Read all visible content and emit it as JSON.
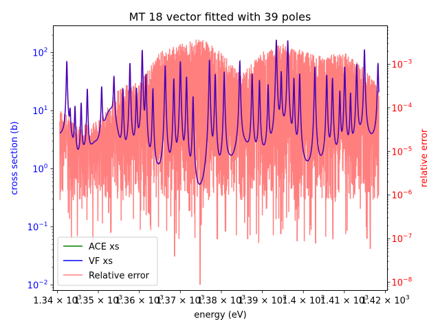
{
  "chart_data": {
    "type": "line",
    "title": "MT 18 vector fitted with 39 poles",
    "xlabel": "energy (eV)",
    "ylabel_left": "cross section (b)",
    "ylabel_right": "relative error",
    "xscale": "linear",
    "yscale_left": "log",
    "yscale_right": "log",
    "xlim": [
      1339.0,
      1420.5
    ],
    "ylim_left": [
      0.008,
      290
    ],
    "ylim_right": [
      6.5e-09,
      0.0076
    ],
    "x_ticks": [
      1340,
      1350,
      1360,
      1370,
      1380,
      1390,
      1400,
      1410,
      1420
    ],
    "x_tick_labels": [
      {
        "mantissa": "1.34",
        "exp": "3"
      },
      {
        "mantissa": "1.35",
        "exp": "3"
      },
      {
        "mantissa": "1.36",
        "exp": "3"
      },
      {
        "mantissa": "1.37",
        "exp": "3"
      },
      {
        "mantissa": "1.38",
        "exp": "3"
      },
      {
        "mantissa": "1.39",
        "exp": "3"
      },
      {
        "mantissa": "1.4",
        "exp": "3"
      },
      {
        "mantissa": "1.41",
        "exp": "3"
      },
      {
        "mantissa": "1.42",
        "exp": "3"
      }
    ],
    "y_left_ticks": [
      {
        "value": 0.01,
        "exp": "−2"
      },
      {
        "value": 0.1,
        "exp": "−1"
      },
      {
        "value": 1,
        "exp": "0"
      },
      {
        "value": 10,
        "exp": "1"
      },
      {
        "value": 100,
        "exp": "2"
      }
    ],
    "y_right_ticks": [
      {
        "value": 1e-08,
        "exp": "−8"
      },
      {
        "value": 1e-07,
        "exp": "−7"
      },
      {
        "value": 1e-06,
        "exp": "−6"
      },
      {
        "value": 1e-05,
        "exp": "−5"
      },
      {
        "value": 0.0001,
        "exp": "−4"
      },
      {
        "value": 0.001,
        "exp": "−3"
      }
    ],
    "legend_position": "lower-left",
    "legend": [
      {
        "name": "ACE xs",
        "color": "#008000"
      },
      {
        "name": "VF xs",
        "color": "#0000ff"
      },
      {
        "name": "Relative error",
        "color": "#ff8080"
      }
    ],
    "cross_section": {
      "x_range": [
        1340.6,
        1418.4
      ],
      "baseline": 3.7,
      "resonances": [
        {
          "x": 1342.3,
          "peak": 68
        },
        {
          "x": 1343.1,
          "peak": 6.2
        },
        {
          "x": 1344.3,
          "peak": 10
        },
        {
          "x": 1345.8,
          "peak": 12
        },
        {
          "x": 1347.3,
          "peak": 22
        },
        {
          "x": 1350.8,
          "peak": 22
        },
        {
          "x": 1353.8,
          "peak": 32
        },
        {
          "x": 1356.0,
          "peak": 22
        },
        {
          "x": 1357.7,
          "peak": 65
        },
        {
          "x": 1359.3,
          "peak": 22
        },
        {
          "x": 1360.7,
          "peak": 110
        },
        {
          "x": 1361.6,
          "peak": 40
        },
        {
          "x": 1363.3,
          "peak": 23
        },
        {
          "x": 1366.3,
          "peak": 60
        },
        {
          "x": 1368.4,
          "peak": 35
        },
        {
          "x": 1370.0,
          "peak": 70
        },
        {
          "x": 1371.5,
          "peak": 38
        },
        {
          "x": 1373.1,
          "peak": 17
        },
        {
          "x": 1377.1,
          "peak": 75
        },
        {
          "x": 1378.5,
          "peak": 42
        },
        {
          "x": 1380.7,
          "peak": 46
        },
        {
          "x": 1384.5,
          "peak": 70
        },
        {
          "x": 1387.5,
          "peak": 42
        },
        {
          "x": 1389.3,
          "peak": 32
        },
        {
          "x": 1391.4,
          "peak": 26
        },
        {
          "x": 1393.4,
          "peak": 165
        },
        {
          "x": 1394.6,
          "peak": 42
        },
        {
          "x": 1396.2,
          "peak": 160
        },
        {
          "x": 1397.7,
          "peak": 34
        },
        {
          "x": 1399.1,
          "peak": 42
        },
        {
          "x": 1402.8,
          "peak": 56
        },
        {
          "x": 1405.7,
          "peak": 40
        },
        {
          "x": 1407.1,
          "peak": 35
        },
        {
          "x": 1408.9,
          "peak": 20
        },
        {
          "x": 1410.1,
          "peak": 56
        },
        {
          "x": 1411.5,
          "peak": 18
        },
        {
          "x": 1413.0,
          "peak": 60
        },
        {
          "x": 1414.9,
          "peak": 110
        },
        {
          "x": 1418.2,
          "peak": 62
        }
      ],
      "valleys": [
        {
          "x": 1342.5,
          "value": 3.9
        },
        {
          "x": 1345.0,
          "value": 1.35
        },
        {
          "x": 1347.0,
          "value": 1.7
        },
        {
          "x": 1349.5,
          "value": 2.7
        },
        {
          "x": 1353.0,
          "value": 10
        },
        {
          "x": 1356.5,
          "value": 1.35
        },
        {
          "x": 1359.5,
          "value": 1.5
        },
        {
          "x": 1362.0,
          "value": 0.55
        },
        {
          "x": 1364.0,
          "value": 0.43
        },
        {
          "x": 1366.0,
          "value": 0.3
        },
        {
          "x": 1367.6,
          "value": 0.4
        },
        {
          "x": 1370.3,
          "value": 0.25
        },
        {
          "x": 1372.3,
          "value": 0.14
        },
        {
          "x": 1374.8,
          "value": 0.013
        },
        {
          "x": 1377.4,
          "value": 0.16
        },
        {
          "x": 1378.9,
          "value": 0.33
        },
        {
          "x": 1382.3,
          "value": 1.05
        },
        {
          "x": 1385.0,
          "value": 2.4
        },
        {
          "x": 1388.3,
          "value": 1.3
        },
        {
          "x": 1390.4,
          "value": 1.3
        },
        {
          "x": 1392.3,
          "value": 1.55
        },
        {
          "x": 1394.9,
          "value": 3.4
        },
        {
          "x": 1398.5,
          "value": 1.0
        },
        {
          "x": 1401.0,
          "value": 0.65
        },
        {
          "x": 1404.0,
          "value": 0.8
        },
        {
          "x": 1407.5,
          "value": 1.2
        },
        {
          "x": 1411.0,
          "value": 1.45
        },
        {
          "x": 1414.0,
          "value": 3.0
        },
        {
          "x": 1416.5,
          "value": 3.0
        }
      ]
    },
    "relative_error": {
      "x_range": [
        1340.6,
        1418.4
      ],
      "typical_value": 3e-05,
      "envelope_points": [
        {
          "x": 1340.6,
          "value": 0.0001
        },
        {
          "x": 1345.0,
          "value": 4e-05
        },
        {
          "x": 1350.0,
          "value": 5e-05
        },
        {
          "x": 1355.0,
          "value": 0.0003
        },
        {
          "x": 1360.0,
          "value": 0.0004
        },
        {
          "x": 1365.0,
          "value": 0.002
        },
        {
          "x": 1370.0,
          "value": 0.003
        },
        {
          "x": 1375.0,
          "value": 0.004
        },
        {
          "x": 1380.0,
          "value": 0.002
        },
        {
          "x": 1385.0,
          "value": 0.0006
        },
        {
          "x": 1390.0,
          "value": 0.002
        },
        {
          "x": 1395.0,
          "value": 0.003
        },
        {
          "x": 1400.0,
          "value": 0.002
        },
        {
          "x": 1405.0,
          "value": 0.0015
        },
        {
          "x": 1410.0,
          "value": 0.002
        },
        {
          "x": 1415.0,
          "value": 0.0008
        },
        {
          "x": 1418.4,
          "value": 0.0003
        }
      ],
      "deep_dips": [
        {
          "x": 1368.6,
          "value": 4e-08
        },
        {
          "x": 1374.8,
          "value": 9e-09
        },
        {
          "x": 1379.0,
          "value": 1e-07
        },
        {
          "x": 1381.0,
          "value": 1.5e-07
        },
        {
          "x": 1386.4,
          "value": 1e-07
        },
        {
          "x": 1398.5,
          "value": 9e-08
        },
        {
          "x": 1403.0,
          "value": 8e-08
        },
        {
          "x": 1407.2,
          "value": 1e-07
        },
        {
          "x": 1416.3,
          "value": 6e-08
        },
        {
          "x": 1352.5,
          "value": 4e-07
        },
        {
          "x": 1362.2,
          "value": 4e-07
        },
        {
          "x": 1391.0,
          "value": 5e-07
        }
      ]
    }
  }
}
